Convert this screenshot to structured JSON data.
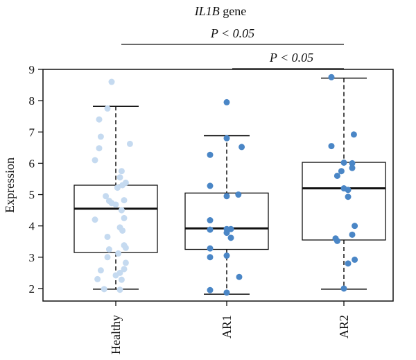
{
  "chart_data": {
    "type": "box",
    "title_italic": "IL1B",
    "title_rest": " gene",
    "ylabel": "Expression",
    "xlabel": "",
    "ylim": [
      1.6,
      9.0
    ],
    "yticks": [
      2,
      3,
      4,
      5,
      6,
      7,
      8,
      9
    ],
    "grid": false,
    "categories": [
      "Healthy",
      "AR1",
      "AR2"
    ],
    "colors": {
      "Healthy": "#c5daf0",
      "AR1": "#4a86c6",
      "AR2": "#4a86c6"
    },
    "boxes": [
      {
        "name": "Healthy",
        "whisker_low": 1.98,
        "q1": 3.15,
        "median": 4.55,
        "q3": 5.3,
        "whisker_high": 7.82
      },
      {
        "name": "AR1",
        "whisker_low": 1.82,
        "q1": 3.25,
        "median": 3.92,
        "q3": 5.05,
        "whisker_high": 6.88
      },
      {
        "name": "AR2",
        "whisker_low": 1.98,
        "q1": 3.55,
        "median": 5.2,
        "q3": 6.03,
        "whisker_high": 8.72
      }
    ],
    "points": [
      {
        "group": "Healthy",
        "jitter": -0.05,
        "y": 8.6
      },
      {
        "group": "Healthy",
        "jitter": -0.1,
        "y": 7.75
      },
      {
        "group": "Healthy",
        "jitter": -0.2,
        "y": 7.4
      },
      {
        "group": "Healthy",
        "jitter": -0.18,
        "y": 6.85
      },
      {
        "group": "Healthy",
        "jitter": 0.17,
        "y": 6.62
      },
      {
        "group": "Healthy",
        "jitter": -0.2,
        "y": 6.48
      },
      {
        "group": "Healthy",
        "jitter": -0.25,
        "y": 6.1
      },
      {
        "group": "Healthy",
        "jitter": 0.07,
        "y": 5.75
      },
      {
        "group": "Healthy",
        "jitter": 0.05,
        "y": 5.55
      },
      {
        "group": "Healthy",
        "jitter": 0.12,
        "y": 5.38
      },
      {
        "group": "Healthy",
        "jitter": 0.08,
        "y": 5.3
      },
      {
        "group": "Healthy",
        "jitter": 0.02,
        "y": 5.22
      },
      {
        "group": "Healthy",
        "jitter": -0.12,
        "y": 4.95
      },
      {
        "group": "Healthy",
        "jitter": -0.08,
        "y": 4.8
      },
      {
        "group": "Healthy",
        "jitter": -0.05,
        "y": 4.73
      },
      {
        "group": "Healthy",
        "jitter": 0.1,
        "y": 4.82
      },
      {
        "group": "Healthy",
        "jitter": 0.0,
        "y": 4.68
      },
      {
        "group": "Healthy",
        "jitter": 0.07,
        "y": 4.5
      },
      {
        "group": "Healthy",
        "jitter": 0.1,
        "y": 4.25
      },
      {
        "group": "Healthy",
        "jitter": -0.25,
        "y": 4.2
      },
      {
        "group": "Healthy",
        "jitter": 0.05,
        "y": 3.95
      },
      {
        "group": "Healthy",
        "jitter": 0.08,
        "y": 3.85
      },
      {
        "group": "Healthy",
        "jitter": -0.1,
        "y": 3.65
      },
      {
        "group": "Healthy",
        "jitter": 0.1,
        "y": 3.38
      },
      {
        "group": "Healthy",
        "jitter": 0.12,
        "y": 3.3
      },
      {
        "group": "Healthy",
        "jitter": -0.08,
        "y": 3.25
      },
      {
        "group": "Healthy",
        "jitter": 0.03,
        "y": 3.12
      },
      {
        "group": "Healthy",
        "jitter": -0.1,
        "y": 3.0
      },
      {
        "group": "Healthy",
        "jitter": 0.12,
        "y": 2.82
      },
      {
        "group": "Healthy",
        "jitter": 0.1,
        "y": 2.62
      },
      {
        "group": "Healthy",
        "jitter": -0.18,
        "y": 2.58
      },
      {
        "group": "Healthy",
        "jitter": 0.05,
        "y": 2.5
      },
      {
        "group": "Healthy",
        "jitter": 0.0,
        "y": 2.42
      },
      {
        "group": "Healthy",
        "jitter": -0.22,
        "y": 2.3
      },
      {
        "group": "Healthy",
        "jitter": 0.07,
        "y": 2.28
      },
      {
        "group": "Healthy",
        "jitter": -0.14,
        "y": 1.98
      },
      {
        "group": "Healthy",
        "jitter": 0.05,
        "y": 1.96
      },
      {
        "group": "AR1",
        "jitter": 0.0,
        "y": 7.95
      },
      {
        "group": "AR1",
        "jitter": 0.0,
        "y": 6.8
      },
      {
        "group": "AR1",
        "jitter": 0.18,
        "y": 6.52
      },
      {
        "group": "AR1",
        "jitter": -0.2,
        "y": 6.27
      },
      {
        "group": "AR1",
        "jitter": -0.2,
        "y": 5.28
      },
      {
        "group": "AR1",
        "jitter": 0.14,
        "y": 5.0
      },
      {
        "group": "AR1",
        "jitter": 0.0,
        "y": 4.95
      },
      {
        "group": "AR1",
        "jitter": -0.2,
        "y": 4.18
      },
      {
        "group": "AR1",
        "jitter": -0.2,
        "y": 3.88
      },
      {
        "group": "AR1",
        "jitter": 0.0,
        "y": 3.9
      },
      {
        "group": "AR1",
        "jitter": 0.05,
        "y": 3.9
      },
      {
        "group": "AR1",
        "jitter": 0.0,
        "y": 3.78
      },
      {
        "group": "AR1",
        "jitter": 0.05,
        "y": 3.62
      },
      {
        "group": "AR1",
        "jitter": -0.2,
        "y": 3.28
      },
      {
        "group": "AR1",
        "jitter": 0.0,
        "y": 3.05
      },
      {
        "group": "AR1",
        "jitter": -0.2,
        "y": 3.0
      },
      {
        "group": "AR1",
        "jitter": 0.15,
        "y": 2.37
      },
      {
        "group": "AR1",
        "jitter": -0.2,
        "y": 1.95
      },
      {
        "group": "AR1",
        "jitter": 0.0,
        "y": 1.87
      },
      {
        "group": "AR2",
        "jitter": -0.15,
        "y": 8.75
      },
      {
        "group": "AR2",
        "jitter": 0.12,
        "y": 6.92
      },
      {
        "group": "AR2",
        "jitter": -0.15,
        "y": 6.55
      },
      {
        "group": "AR2",
        "jitter": 0.0,
        "y": 6.02
      },
      {
        "group": "AR2",
        "jitter": 0.1,
        "y": 6.0
      },
      {
        "group": "AR2",
        "jitter": 0.1,
        "y": 5.85
      },
      {
        "group": "AR2",
        "jitter": -0.03,
        "y": 5.75
      },
      {
        "group": "AR2",
        "jitter": -0.08,
        "y": 5.6
      },
      {
        "group": "AR2",
        "jitter": 0.0,
        "y": 5.2
      },
      {
        "group": "AR2",
        "jitter": 0.05,
        "y": 5.15
      },
      {
        "group": "AR2",
        "jitter": 0.05,
        "y": 4.93
      },
      {
        "group": "AR2",
        "jitter": 0.13,
        "y": 4.0
      },
      {
        "group": "AR2",
        "jitter": 0.1,
        "y": 3.72
      },
      {
        "group": "AR2",
        "jitter": -0.1,
        "y": 3.6
      },
      {
        "group": "AR2",
        "jitter": -0.08,
        "y": 3.52
      },
      {
        "group": "AR2",
        "jitter": 0.13,
        "y": 2.92
      },
      {
        "group": "AR2",
        "jitter": 0.05,
        "y": 2.8
      },
      {
        "group": "AR2",
        "jitter": 0.0,
        "y": 2.0
      }
    ],
    "significance": [
      {
        "from": "Healthy",
        "to": "AR2",
        "label": "P < 0.05"
      },
      {
        "from": "AR1",
        "to": "AR2",
        "label": "P < 0.05"
      }
    ]
  }
}
